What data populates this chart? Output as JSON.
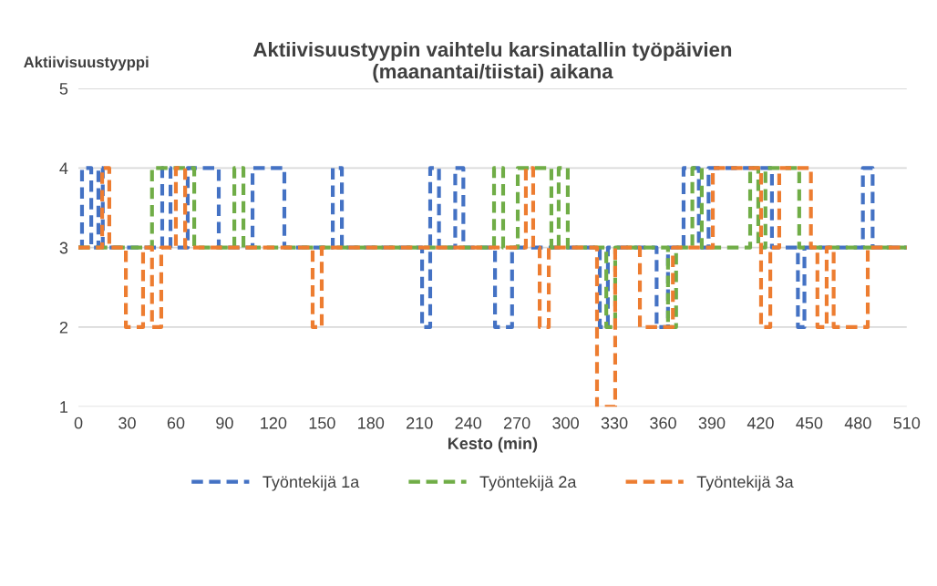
{
  "chart_data": {
    "type": "step",
    "title": "Aktiivisuustyypin vaihtelu karsinatallin työpäivien\n(maanantai/tiistai) aikana",
    "xlabel": "Kesto (min)",
    "ylabel": "Aktiivisuustyyppi",
    "xlim": [
      0,
      510
    ],
    "xticks": [
      0,
      30,
      60,
      90,
      120,
      150,
      180,
      210,
      240,
      270,
      300,
      330,
      360,
      390,
      420,
      450,
      480,
      510
    ],
    "ylim": [
      1,
      5
    ],
    "yticks": [
      1,
      2,
      3,
      4,
      5
    ],
    "grid": "y",
    "legend": "bottom",
    "line_style": "dashed",
    "series": [
      {
        "name": "Työntekijä 1a",
        "color": "#4472c4",
        "x": [
          0,
          2.2,
          7.9,
          12.3,
          15,
          51.6,
          56.7,
          67.3,
          86.4,
          107.2,
          126.8,
          156.6,
          162.2,
          211.6,
          216.6,
          222,
          232,
          237,
          256.5,
          267,
          321,
          326,
          356,
          363,
          372.6,
          382,
          388,
          427,
          443,
          447,
          483,
          489,
          510
        ],
        "values": [
          3,
          4,
          3,
          4,
          3,
          4,
          3,
          4,
          3,
          4,
          3,
          4,
          3,
          2,
          4,
          3,
          4,
          3,
          2,
          3,
          2,
          3,
          2,
          3,
          4,
          3,
          4,
          3,
          2,
          3,
          4,
          3,
          3
        ]
      },
      {
        "name": "Työntekijä 2a",
        "color": "#70ad47",
        "x": [
          0,
          45.3,
          71.3,
          96,
          101.6,
          255.9,
          261.5,
          270.5,
          291.2,
          295.7,
          301.3,
          325,
          330.5,
          363,
          368,
          378,
          383.8,
          413.6,
          418.6,
          423,
          443.8,
          510
        ],
        "values": [
          3,
          4,
          3,
          4,
          3,
          4,
          3,
          4,
          3,
          4,
          3,
          2,
          3,
          2,
          3,
          4,
          3,
          4,
          3,
          4,
          3,
          3
        ]
      },
      {
        "name": "Työntekijä 3a",
        "color": "#ed7d31",
        "x": [
          0,
          14.6,
          19,
          29.2,
          39.8,
          45.3,
          51,
          60,
          65.7,
          144.2,
          149.8,
          275.5,
          280,
          284,
          289.6,
          319.3,
          330.5,
          345.7,
          366,
          390.6,
          420.3,
          426,
          431.5,
          451,
          455,
          460.7,
          465,
          486,
          510
        ],
        "values": [
          3,
          4,
          3,
          2,
          3,
          2,
          3,
          4,
          3,
          2,
          3,
          4,
          3,
          2,
          3,
          1,
          3,
          2,
          3,
          4,
          2,
          3,
          4,
          3,
          2,
          3,
          2,
          3,
          3
        ]
      }
    ]
  }
}
